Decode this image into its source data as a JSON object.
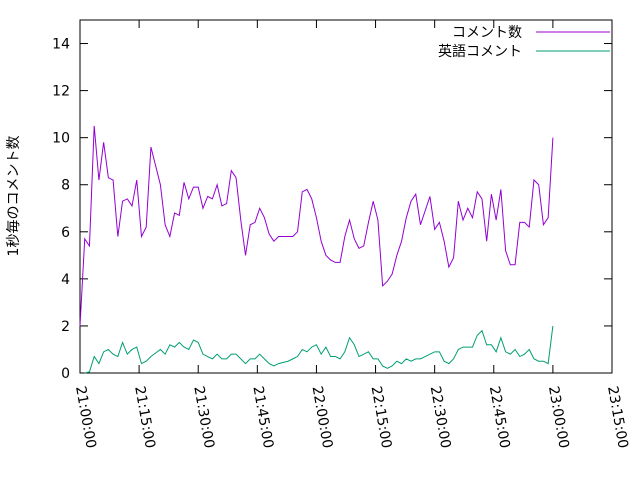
{
  "chart_data": {
    "type": "line",
    "ylabel": "1秒毎のコメント数",
    "x": [
      "21:00:00",
      "21:01:12",
      "21:02:24",
      "21:03:36",
      "21:04:48",
      "21:06:00",
      "21:07:12",
      "21:08:24",
      "21:09:36",
      "21:10:48",
      "21:12:00",
      "21:13:12",
      "21:14:24",
      "21:15:36",
      "21:16:48",
      "21:18:00",
      "21:19:12",
      "21:20:24",
      "21:21:36",
      "21:22:48",
      "21:24:00",
      "21:25:12",
      "21:26:24",
      "21:27:36",
      "21:28:48",
      "21:30:00",
      "21:31:12",
      "21:32:24",
      "21:33:36",
      "21:34:48",
      "21:36:00",
      "21:37:12",
      "21:38:24",
      "21:39:36",
      "21:40:48",
      "21:42:00",
      "21:43:12",
      "21:44:24",
      "21:45:36",
      "21:46:48",
      "21:48:00",
      "21:49:12",
      "21:50:24",
      "21:51:36",
      "21:52:48",
      "21:54:00",
      "21:55:12",
      "21:56:24",
      "21:57:36",
      "21:58:48",
      "22:00:00",
      "22:01:12",
      "22:02:24",
      "22:03:36",
      "22:04:48",
      "22:06:00",
      "22:07:12",
      "22:08:24",
      "22:09:36",
      "22:10:48",
      "22:12:00",
      "22:13:12",
      "22:14:24",
      "22:15:36",
      "22:16:48",
      "22:18:00",
      "22:19:12",
      "22:20:24",
      "22:21:36",
      "22:22:48",
      "22:24:00",
      "22:25:12",
      "22:26:24",
      "22:27:36",
      "22:28:48",
      "22:30:00",
      "22:31:12",
      "22:32:24",
      "22:33:36",
      "22:34:48",
      "22:36:00",
      "22:37:12",
      "22:38:24",
      "22:39:36",
      "22:40:48",
      "22:42:00",
      "22:43:12",
      "22:44:24",
      "22:45:36",
      "22:46:48",
      "22:48:00",
      "22:49:12",
      "22:50:24",
      "22:51:36",
      "22:52:48",
      "22:54:00",
      "22:55:12",
      "22:56:24",
      "22:57:36",
      "22:58:48",
      "23:00:00"
    ],
    "series": [
      {
        "name": "コメント数",
        "color": "#9400d3",
        "values": [
          2.0,
          5.7,
          5.4,
          10.5,
          8.2,
          9.8,
          8.3,
          8.2,
          5.8,
          7.3,
          7.4,
          7.1,
          8.2,
          5.8,
          6.2,
          9.6,
          8.8,
          8.0,
          6.3,
          5.8,
          6.8,
          6.7,
          8.1,
          7.4,
          7.9,
          7.9,
          7.0,
          7.5,
          7.4,
          8.0,
          7.1,
          7.2,
          8.6,
          8.3,
          6.5,
          5.0,
          6.3,
          6.4,
          7.0,
          6.6,
          5.9,
          5.6,
          5.8,
          5.8,
          5.8,
          5.8,
          6.0,
          7.7,
          7.8,
          7.4,
          6.6,
          5.6,
          5.0,
          4.8,
          4.7,
          4.7,
          5.8,
          6.5,
          5.7,
          5.3,
          5.4,
          6.4,
          7.3,
          6.5,
          3.7,
          3.9,
          4.2,
          5.0,
          5.6,
          6.6,
          7.3,
          7.6,
          6.3,
          6.9,
          7.5,
          6.1,
          6.4,
          5.6,
          4.5,
          4.9,
          7.3,
          6.5,
          7.0,
          6.6,
          7.7,
          7.4,
          5.6,
          7.6,
          6.5,
          7.8,
          5.2,
          4.6,
          4.6,
          6.4,
          6.4,
          6.2,
          8.2,
          8.0,
          6.3,
          6.6,
          10.0
        ]
      },
      {
        "name": "英語コメント",
        "color": "#009e73",
        "values": [
          null,
          0.0,
          0.05,
          0.7,
          0.4,
          0.9,
          1.0,
          0.8,
          0.7,
          1.3,
          0.8,
          1.0,
          1.1,
          0.4,
          0.5,
          0.7,
          0.85,
          1.0,
          0.8,
          1.2,
          1.1,
          1.3,
          1.1,
          1.0,
          1.4,
          1.3,
          0.8,
          0.7,
          0.6,
          0.8,
          0.6,
          0.6,
          0.8,
          0.8,
          0.6,
          0.4,
          0.6,
          0.6,
          0.8,
          0.6,
          0.4,
          0.3,
          0.4,
          0.45,
          0.5,
          0.6,
          0.7,
          1.0,
          0.9,
          1.1,
          1.2,
          0.8,
          1.1,
          0.7,
          0.7,
          0.6,
          0.9,
          1.5,
          1.2,
          0.7,
          0.8,
          0.9,
          0.6,
          0.6,
          0.3,
          0.2,
          0.3,
          0.5,
          0.4,
          0.6,
          0.5,
          0.6,
          0.6,
          0.7,
          0.8,
          0.9,
          0.9,
          0.5,
          0.4,
          0.6,
          1.0,
          1.1,
          1.1,
          1.1,
          1.6,
          1.8,
          1.2,
          1.2,
          0.9,
          1.5,
          0.9,
          0.8,
          1.0,
          0.7,
          0.8,
          1.0,
          0.6,
          0.5,
          0.5,
          0.4,
          2.0
        ]
      }
    ],
    "xlim": [
      "21:00:00",
      "23:15:00"
    ],
    "xticks": [
      "21:00:00",
      "21:15:00",
      "21:30:00",
      "21:45:00",
      "22:00:00",
      "22:15:00",
      "22:30:00",
      "22:45:00",
      "23:00:00",
      "23:15:00"
    ],
    "ylim": [
      0,
      15
    ],
    "yticks": [
      0,
      2,
      4,
      6,
      8,
      10,
      12,
      14
    ],
    "legend": "top-right"
  }
}
